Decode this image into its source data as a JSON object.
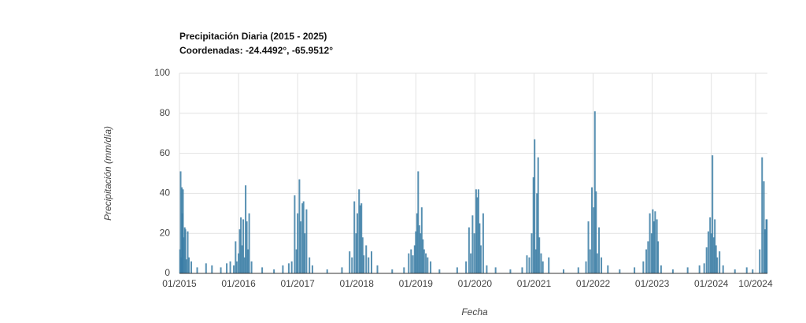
{
  "chart_data": {
    "type": "bar",
    "title": "Precipitación Diaria (2015 - 2025)",
    "subtitle": "Coordenadas: -24.4492°, -65.9512°",
    "x_label": "Fecha",
    "y_label": "Precipitación (mm/día)",
    "color": "#3a7ca5",
    "grid": true,
    "ylim": [
      0,
      100
    ],
    "yticks": [
      0,
      20,
      40,
      60,
      80,
      100
    ],
    "xlim": [
      2015,
      2024.95
    ],
    "xticks": [
      {
        "value": 2015,
        "label": "01/2015"
      },
      {
        "value": 2016,
        "label": "01/2016"
      },
      {
        "value": 2017,
        "label": "01/2017"
      },
      {
        "value": 2018,
        "label": "01/2018"
      },
      {
        "value": 2019,
        "label": "01/2019"
      },
      {
        "value": 2020,
        "label": "01/2020"
      },
      {
        "value": 2021,
        "label": "01/2021"
      },
      {
        "value": 2022,
        "label": "01/2022"
      },
      {
        "value": 2023,
        "label": "01/2023"
      },
      {
        "value": 2024,
        "label": "01/2024"
      },
      {
        "value": 2024.75,
        "label": "10/2024"
      }
    ],
    "x": [
      2015.01,
      2015.02,
      2015.03,
      2015.04,
      2015.05,
      2015.06,
      2015.07,
      2015.09,
      2015.1,
      2015.12,
      2015.14,
      2015.16,
      2015.2,
      2015.3,
      2015.45,
      2015.55,
      2015.7,
      2015.8,
      2015.86,
      2015.92,
      2015.95,
      2015.97,
      2016.0,
      2016.02,
      2016.04,
      2016.06,
      2016.08,
      2016.1,
      2016.12,
      2016.14,
      2016.16,
      2016.18,
      2016.22,
      2016.4,
      2016.6,
      2016.75,
      2016.85,
      2016.9,
      2016.95,
      2016.98,
      2017.0,
      2017.03,
      2017.05,
      2017.08,
      2017.1,
      2017.12,
      2017.15,
      2017.2,
      2017.25,
      2017.5,
      2017.75,
      2017.88,
      2017.92,
      2017.96,
      2017.99,
      2018.01,
      2018.04,
      2018.06,
      2018.08,
      2018.1,
      2018.12,
      2018.16,
      2018.2,
      2018.25,
      2018.35,
      2018.6,
      2018.8,
      2018.88,
      2018.92,
      2018.95,
      2018.98,
      2019.0,
      2019.02,
      2019.04,
      2019.06,
      2019.08,
      2019.1,
      2019.12,
      2019.14,
      2019.17,
      2019.2,
      2019.25,
      2019.4,
      2019.7,
      2019.85,
      2019.9,
      2019.93,
      2019.96,
      2019.99,
      2020.02,
      2020.04,
      2020.06,
      2020.08,
      2020.1,
      2020.14,
      2020.2,
      2020.35,
      2020.6,
      2020.8,
      2020.88,
      2020.92,
      2020.96,
      2020.99,
      2021.01,
      2021.03,
      2021.05,
      2021.07,
      2021.09,
      2021.12,
      2021.15,
      2021.25,
      2021.5,
      2021.75,
      2021.88,
      2021.92,
      2021.95,
      2021.98,
      2022.01,
      2022.03,
      2022.05,
      2022.07,
      2022.1,
      2022.14,
      2022.25,
      2022.45,
      2022.7,
      2022.85,
      2022.9,
      2022.93,
      2022.96,
      2022.99,
      2023.01,
      2023.03,
      2023.05,
      2023.08,
      2023.1,
      2023.15,
      2023.35,
      2023.6,
      2023.8,
      2023.88,
      2023.92,
      2023.95,
      2023.98,
      2024.0,
      2024.02,
      2024.04,
      2024.06,
      2024.08,
      2024.1,
      2024.14,
      2024.2,
      2024.4,
      2024.6,
      2024.7,
      2024.82,
      2024.86,
      2024.89,
      2024.91,
      2024.93,
      2024.94
    ],
    "values": [
      12,
      51,
      8,
      43,
      30,
      42,
      18,
      23,
      22,
      7,
      21,
      8,
      6,
      3,
      5,
      4,
      3,
      5,
      6,
      4,
      16,
      6,
      10,
      22,
      28,
      14,
      27,
      8,
      44,
      26,
      12,
      30,
      6,
      3,
      2,
      4,
      5,
      6,
      39,
      12,
      30,
      47,
      26,
      35,
      36,
      20,
      32,
      8,
      4,
      2,
      3,
      11,
      8,
      36,
      20,
      30,
      42,
      34,
      35,
      18,
      9,
      14,
      8,
      11,
      4,
      2,
      3,
      10,
      12,
      9,
      14,
      21,
      30,
      51,
      24,
      20,
      33,
      17,
      12,
      10,
      8,
      6,
      2,
      3,
      6,
      23,
      10,
      29,
      20,
      42,
      38,
      42,
      25,
      14,
      30,
      4,
      3,
      2,
      3,
      9,
      8,
      20,
      48,
      67,
      12,
      40,
      58,
      18,
      10,
      6,
      8,
      2,
      3,
      6,
      26,
      12,
      43,
      33,
      81,
      41,
      10,
      23,
      8,
      4,
      2,
      3,
      6,
      12,
      16,
      30,
      20,
      32,
      26,
      31,
      27,
      16,
      4,
      2,
      3,
      4,
      5,
      13,
      21,
      28,
      20,
      59,
      18,
      27,
      14,
      8,
      11,
      4,
      2,
      3,
      2,
      12,
      58,
      46,
      22,
      27,
      27
    ]
  }
}
